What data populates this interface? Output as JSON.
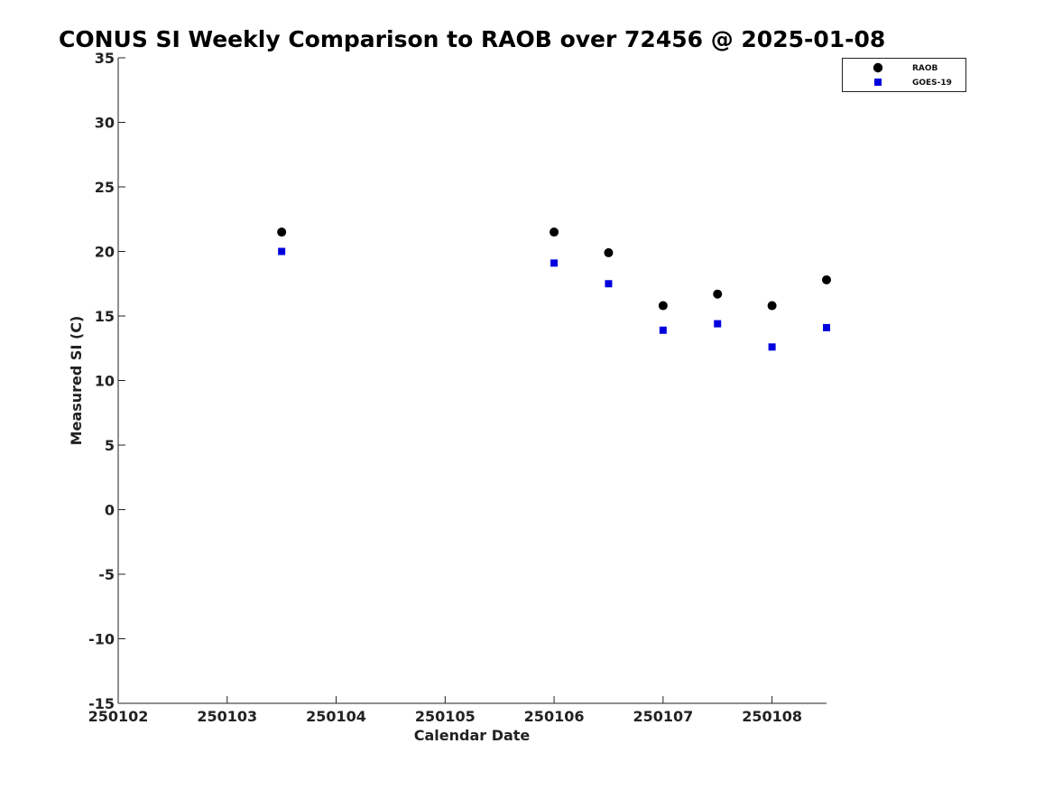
{
  "chart_data": {
    "type": "scatter",
    "title": "CONUS SI Weekly Comparison to RAOB over 72456 @ 2025-01-08",
    "xlabel": "Calendar Date",
    "ylabel": "Measured SI (C)",
    "xlim": [
      0,
      6.5
    ],
    "ylim": [
      -15,
      35
    ],
    "x_ticks": [
      0,
      1,
      2,
      3,
      4,
      5,
      6
    ],
    "x_tick_labels": [
      "250102",
      "250103",
      "250104",
      "250105",
      "250106",
      "250107",
      "250108"
    ],
    "y_ticks": [
      -15,
      -10,
      -5,
      0,
      5,
      10,
      15,
      20,
      25,
      30,
      35
    ],
    "y_tick_labels": [
      "-15",
      "-10",
      "-5",
      "0",
      "5",
      "10",
      "15",
      "20",
      "25",
      "30",
      "35"
    ],
    "legend_position": "top-right",
    "grid": false,
    "series": [
      {
        "name": "RAOB",
        "marker": "circle",
        "color": "#000000",
        "x": [
          1.5,
          4.0,
          4.5,
          5.0,
          5.5,
          6.0,
          6.5
        ],
        "y": [
          21.5,
          21.5,
          19.9,
          15.8,
          16.7,
          15.8,
          17.8
        ]
      },
      {
        "name": "GOES-19",
        "marker": "square",
        "color": "#0000dd",
        "x": [
          1.5,
          4.0,
          4.5,
          5.0,
          5.5,
          6.0,
          6.5
        ],
        "y": [
          20.0,
          19.1,
          17.5,
          13.9,
          14.4,
          12.6,
          14.1
        ]
      }
    ]
  }
}
